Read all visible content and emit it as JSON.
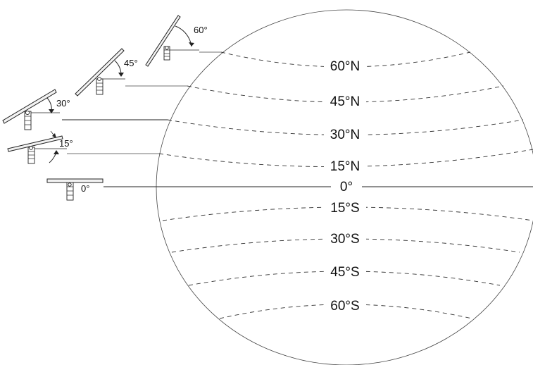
{
  "latitudes": [
    {
      "label": "60°N"
    },
    {
      "label": "45°N"
    },
    {
      "label": "30°N"
    },
    {
      "label": "15°N"
    },
    {
      "label": "0°"
    },
    {
      "label": "15°S"
    },
    {
      "label": "30°S"
    },
    {
      "label": "45°S"
    },
    {
      "label": "60°S"
    }
  ],
  "tilts": [
    {
      "label": "60°",
      "angle": 60
    },
    {
      "label": "45°",
      "angle": 45
    },
    {
      "label": "30°",
      "angle": 30
    },
    {
      "label": "15°",
      "angle": 15
    },
    {
      "label": "0°",
      "angle": 0
    }
  ]
}
